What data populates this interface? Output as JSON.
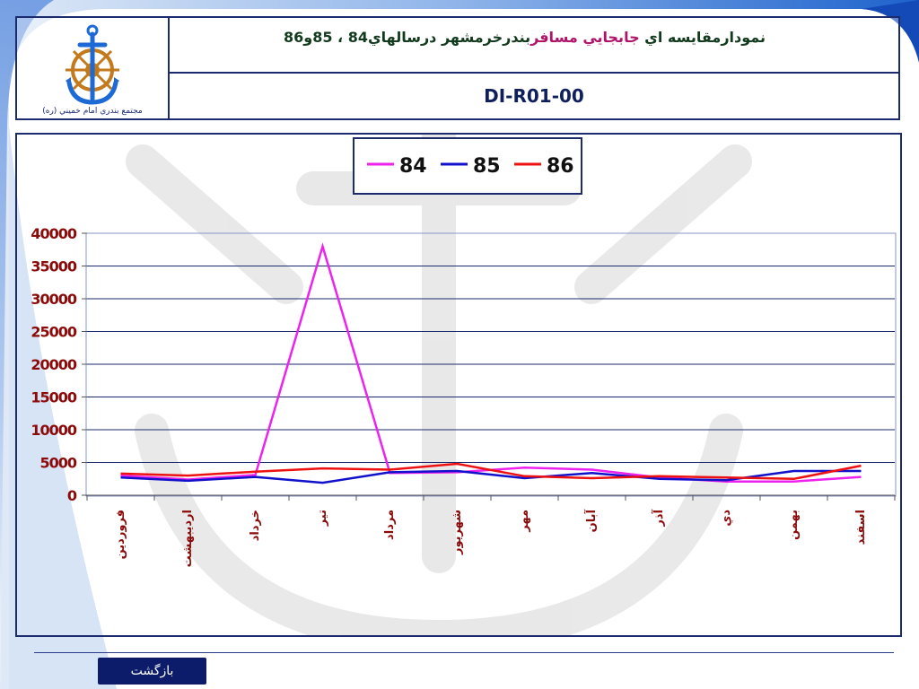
{
  "header": {
    "logo_caption": "مجتمع بندري امام خميني (ره)",
    "title_part1": "نمودارمقايسه اي ",
    "title_highlight": "جابجايي مسافر",
    "title_part2": "بندرخرمشهر درسالهاي84 ، 85و86",
    "doc_code": "DI-R01-00"
  },
  "footer": {
    "back_label": "بازگشت"
  },
  "colors": {
    "series_84": "#ee22ee",
    "series_85": "#1111cc",
    "series_86": "#ee1111",
    "axis_label": "#8b0a0a",
    "frame": "#1c2a6e"
  },
  "chart_data": {
    "type": "line",
    "categories": [
      "فروردين",
      "ارديبهشت",
      "خرداد",
      "تير",
      "مرداد",
      "شهريور",
      "مهر",
      "آبان",
      "آذر",
      "دي",
      "بهمن",
      "اسفند"
    ],
    "category_labels_shown": [
      "فروردين",
      "ارديبهشت",
      "خرداد",
      "تير",
      "مرداد",
      "شهريور",
      "مهر",
      "آبان",
      "آذر",
      "دي",
      "بهمن",
      "اسفند"
    ],
    "series": [
      {
        "name": "84",
        "values": [
          3000,
          2400,
          3100,
          38000,
          3400,
          3500,
          4200,
          3900,
          2700,
          2100,
          2100,
          2800
        ]
      },
      {
        "name": "85",
        "values": [
          2700,
          2200,
          2800,
          1900,
          3500,
          3700,
          2600,
          3400,
          2500,
          2300,
          3700,
          3700
        ]
      },
      {
        "name": "86",
        "values": [
          3300,
          3000,
          3600,
          4100,
          3900,
          4800,
          2900,
          2600,
          2900,
          2700,
          2500,
          4500
        ]
      }
    ],
    "y_ticks": [
      "40000",
      "35000",
      "30000",
      "25000",
      "20000",
      "15000",
      "10000",
      "5000",
      "0"
    ],
    "ylim": [
      0,
      40000
    ],
    "grid": true,
    "legend_position": "top-center"
  }
}
